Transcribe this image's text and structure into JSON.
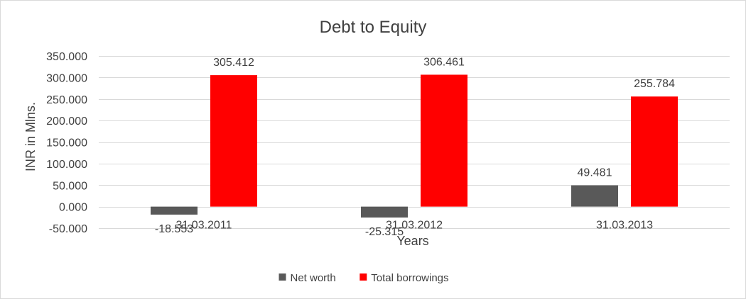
{
  "chart_data": {
    "type": "bar",
    "title": "Debt to Equity",
    "xlabel": "Years",
    "ylabel": "INR in Mlns.",
    "categories": [
      "31.03.2011",
      "31.03.2012",
      "31.03.2013"
    ],
    "series": [
      {
        "name": "Net worth",
        "values": [
          -18.553,
          -25.315,
          49.481
        ],
        "labels": [
          "-18.553",
          "-25.315",
          "49.481"
        ],
        "color": "#595959"
      },
      {
        "name": "Total borrowings",
        "values": [
          305.412,
          306.461,
          255.784
        ],
        "labels": [
          "305.412",
          "306.461",
          "255.784"
        ],
        "color": "#ff0000"
      }
    ],
    "ylim": [
      -50,
      350
    ],
    "yticks": [
      "350.000",
      "300.000",
      "250.000",
      "200.000",
      "150.000",
      "100.000",
      "50.000",
      "0.000",
      "-50.000"
    ],
    "ytick_values": [
      350,
      300,
      250,
      200,
      150,
      100,
      50,
      0,
      -50
    ],
    "grid": true,
    "gridline_color": "#d9d9d9",
    "legend_position": "bottom"
  }
}
